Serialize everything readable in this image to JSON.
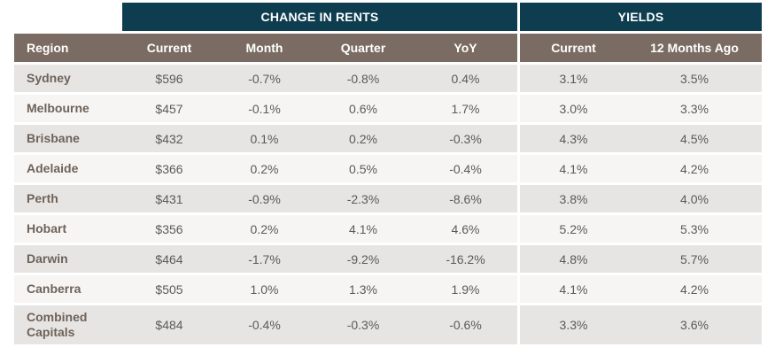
{
  "groups": {
    "change_in_rents": "CHANGE IN RENTS",
    "yields": "YIELDS"
  },
  "columns": [
    "Region",
    "Current",
    "Month",
    "Quarter",
    "YoY",
    "Current",
    "12 Months Ago"
  ],
  "rows": [
    {
      "region": "Sydney",
      "current": "$596",
      "month": "-0.7%",
      "quarter": "-0.8%",
      "yoy": "0.4%",
      "yield_current": "3.1%",
      "yield_12m": "3.5%"
    },
    {
      "region": "Melbourne",
      "current": "$457",
      "month": "-0.1%",
      "quarter": "0.6%",
      "yoy": "1.7%",
      "yield_current": "3.0%",
      "yield_12m": "3.3%"
    },
    {
      "region": "Brisbane",
      "current": "$432",
      "month": "0.1%",
      "quarter": "0.2%",
      "yoy": "-0.3%",
      "yield_current": "4.3%",
      "yield_12m": "4.5%"
    },
    {
      "region": "Adelaide",
      "current": "$366",
      "month": "0.2%",
      "quarter": "0.5%",
      "yoy": "-0.4%",
      "yield_current": "4.1%",
      "yield_12m": "4.2%"
    },
    {
      "region": "Perth",
      "current": "$431",
      "month": "-0.9%",
      "quarter": "-2.3%",
      "yoy": "-8.6%",
      "yield_current": "3.8%",
      "yield_12m": "4.0%"
    },
    {
      "region": "Hobart",
      "current": "$356",
      "month": "0.2%",
      "quarter": "4.1%",
      "yoy": "4.6%",
      "yield_current": "5.2%",
      "yield_12m": "5.3%"
    },
    {
      "region": "Darwin",
      "current": "$464",
      "month": "-1.7%",
      "quarter": "-9.2%",
      "yoy": "-16.2%",
      "yield_current": "4.8%",
      "yield_12m": "5.7%"
    },
    {
      "region": "Canberra",
      "current": "$505",
      "month": "1.0%",
      "quarter": "1.3%",
      "yoy": "1.9%",
      "yield_current": "4.1%",
      "yield_12m": "4.2%"
    },
    {
      "region": "Combined Capitals",
      "current": "$484",
      "month": "-0.4%",
      "quarter": "-0.3%",
      "yoy": "-0.6%",
      "yield_current": "3.3%",
      "yield_12m": "3.6%"
    }
  ],
  "chart_data": {
    "type": "table",
    "title": "",
    "column_groups": [
      {
        "name": "CHANGE IN RENTS",
        "columns": [
          "Current",
          "Month",
          "Quarter",
          "YoY"
        ]
      },
      {
        "name": "YIELDS",
        "columns": [
          "Current",
          "12 Months Ago"
        ]
      }
    ],
    "header": [
      "Region",
      "Current",
      "Month",
      "Quarter",
      "YoY",
      "Current",
      "12 Months Ago"
    ],
    "cells": [
      [
        "Sydney",
        "$596",
        "-0.7%",
        "-0.8%",
        "0.4%",
        "3.1%",
        "3.5%"
      ],
      [
        "Melbourne",
        "$457",
        "-0.1%",
        "0.6%",
        "1.7%",
        "3.0%",
        "3.3%"
      ],
      [
        "Brisbane",
        "$432",
        "0.1%",
        "0.2%",
        "-0.3%",
        "4.3%",
        "4.5%"
      ],
      [
        "Adelaide",
        "$366",
        "0.2%",
        "0.5%",
        "-0.4%",
        "4.1%",
        "4.2%"
      ],
      [
        "Perth",
        "$431",
        "-0.9%",
        "-2.3%",
        "-8.6%",
        "3.8%",
        "4.0%"
      ],
      [
        "Hobart",
        "$356",
        "0.2%",
        "4.1%",
        "4.6%",
        "5.2%",
        "5.3%"
      ],
      [
        "Darwin",
        "$464",
        "-1.7%",
        "-9.2%",
        "-16.2%",
        "4.8%",
        "5.7%"
      ],
      [
        "Canberra",
        "$505",
        "1.0%",
        "1.3%",
        "1.9%",
        "4.1%",
        "4.2%"
      ],
      [
        "Combined Capitals",
        "$484",
        "-0.4%",
        "-0.3%",
        "-0.6%",
        "3.3%",
        "3.6%"
      ]
    ]
  },
  "colors": {
    "group_header_bg": "#0d3d4f",
    "column_header_bg": "#7a6c62",
    "row_odd_bg": "#e7e5e3",
    "row_even_bg": "#f6f5f3",
    "region_text": "#6e6259",
    "value_text": "#5a5a5a"
  }
}
